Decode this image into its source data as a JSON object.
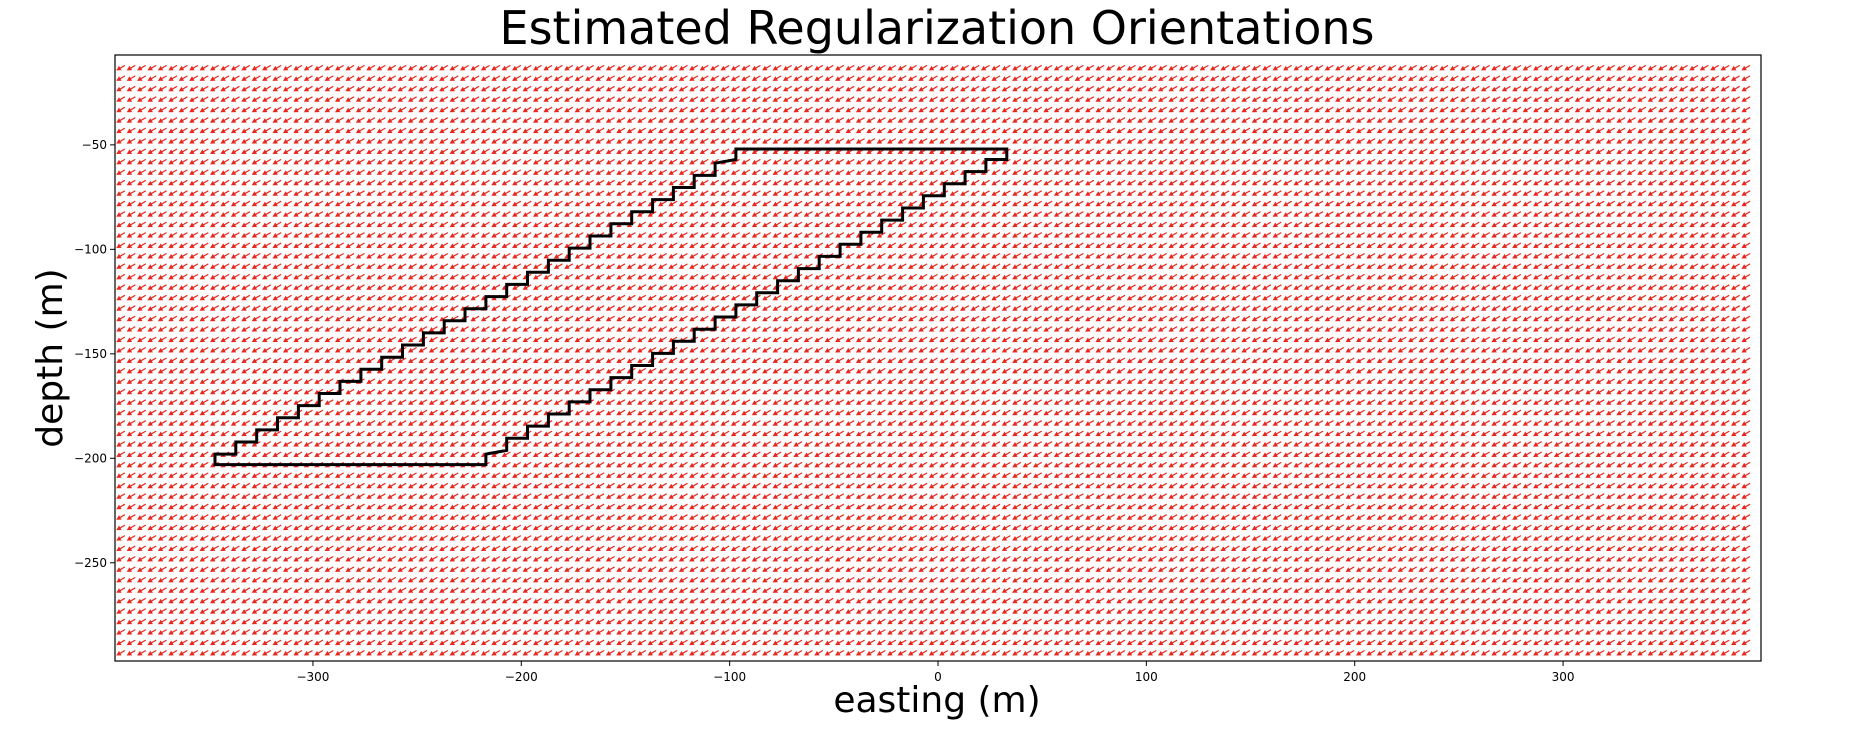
{
  "chart_data": {
    "type": "quiver",
    "title": "Estimated Regularization Orientations",
    "xlabel": "easting (m)",
    "ylabel": "depth (m)",
    "xlim": [
      -395,
      395
    ],
    "ylim": [
      -297,
      -7
    ],
    "xticks": [
      -300,
      -200,
      -100,
      0,
      100,
      200,
      300
    ],
    "yticks": [
      -50,
      -100,
      -150,
      -200,
      -250
    ],
    "grid": false,
    "legend": "none",
    "arrow_field": {
      "color": "#e8281e",
      "x_range": [
        -392,
        392
      ],
      "y_range": [
        -293,
        -9
      ],
      "spacing": 5,
      "direction": "left-down",
      "angle_deg": 210
    },
    "outline": {
      "color": "#000000",
      "description_vertices": [
        [
          -97,
          -52
        ],
        [
          33,
          -52
        ],
        [
          33,
          -57
        ],
        [
          -217,
          -203
        ],
        [
          -347,
          -203
        ],
        [
          -347,
          -198
        ]
      ]
    }
  }
}
